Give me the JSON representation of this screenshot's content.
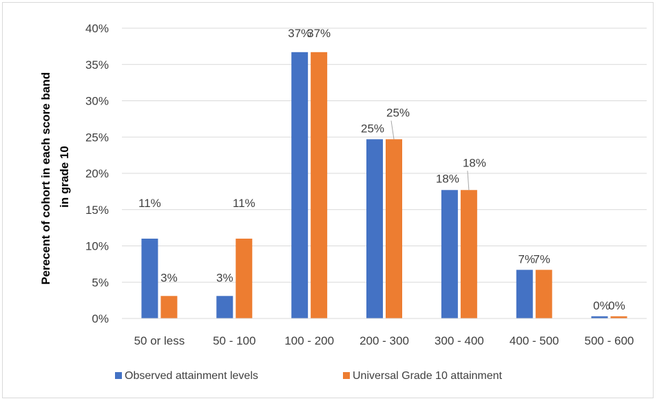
{
  "chart_data": {
    "type": "bar",
    "title": "",
    "xlabel": "",
    "ylabel": "Perecent of cohort in each score band in grade 10",
    "ylabel_lines": [
      "Perecent of cohort in each score band",
      "in grade 10"
    ],
    "categories": [
      "50 or less",
      "50 - 100",
      "100 - 200",
      "200 - 300",
      "300 - 400",
      "400 - 500",
      "500 - 600"
    ],
    "series": [
      {
        "name": "Observed attainment levels",
        "color": "#4472c4",
        "values": [
          11.0,
          3.1,
          36.7,
          24.7,
          17.7,
          6.7,
          0.3
        ],
        "labels": [
          "11%",
          "3%",
          "37%",
          "25%",
          "18%",
          "7%",
          "0%"
        ]
      },
      {
        "name": "Universal Grade 10 attainment",
        "color": "#ed7d31",
        "values": [
          3.1,
          11.0,
          36.7,
          24.7,
          17.7,
          6.7,
          0.3
        ],
        "labels": [
          "3%",
          "11%",
          "37%",
          "25%",
          "18%",
          "7%",
          "0%"
        ]
      }
    ],
    "ylim": [
      0,
      40
    ],
    "yticks": [
      0,
      5,
      10,
      15,
      20,
      25,
      30,
      35,
      40
    ],
    "ytick_labels": [
      "0%",
      "5%",
      "10%",
      "15%",
      "20%",
      "25%",
      "30%",
      "35%",
      "40%"
    ],
    "grid": true,
    "legend": "bottom"
  }
}
